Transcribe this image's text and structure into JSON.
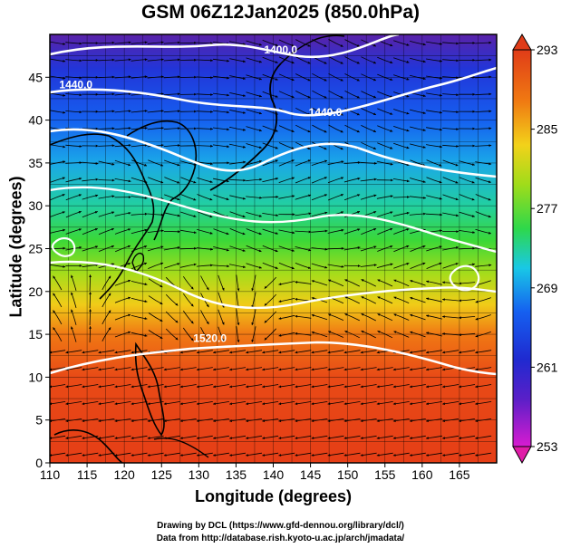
{
  "title": "GSM 06Z12Jan2025 (850.0hPa)",
  "axes": {
    "xlabel": "Longitude (degrees)",
    "ylabel": "Latitude  (degrees)",
    "xlim": [
      110,
      170
    ],
    "ylim": [
      0,
      50
    ],
    "xticks": [
      110,
      115,
      120,
      125,
      130,
      135,
      140,
      145,
      150,
      155,
      160,
      165
    ],
    "yticks": [
      0,
      5,
      10,
      15,
      20,
      25,
      30,
      35,
      40,
      45
    ]
  },
  "colorbar": {
    "min": 253,
    "max": 293,
    "ticks": [
      293,
      285,
      277,
      269,
      261,
      253
    ],
    "colors": [
      "#d81cd0",
      "#2a1fc8",
      "#1560f0",
      "#19c8e6",
      "#2ed84a",
      "#9fdc1a",
      "#f2d21a",
      "#f07a12",
      "#e03c18"
    ]
  },
  "contours": [
    {
      "label": "1400.0",
      "lon": 141,
      "lat": 47.8
    },
    {
      "label": "1440.0",
      "lon": 113.5,
      "lat": 43.7
    },
    {
      "label": "1440.0",
      "lon": 147,
      "lat": 40.5
    },
    {
      "label": "1520.0",
      "lon": 131.5,
      "lat": 14.1
    }
  ],
  "credits": {
    "line1": "Drawing by DCL (https://www.gfd-dennou.org/library/dcl/)",
    "line2": "Data from http://database.rish.kyoto-u.ac.jp/arch/jmadata/"
  }
}
